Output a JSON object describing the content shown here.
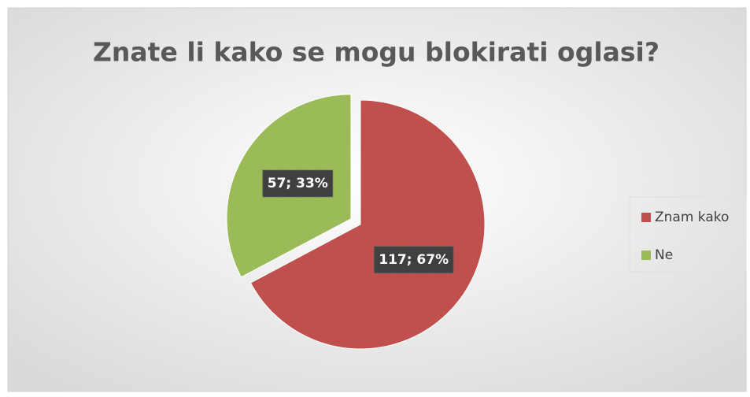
{
  "chart_data": {
    "type": "pie",
    "title": "Znate li kako se mogu blokirati oglasi?",
    "categories": [
      "Znam kako",
      "Ne"
    ],
    "values": [
      117,
      57
    ],
    "value_labels": [
      "117; 67%",
      "57; 33%"
    ],
    "colors": [
      "#c0504d",
      "#9bbb59"
    ],
    "legend": "right"
  }
}
